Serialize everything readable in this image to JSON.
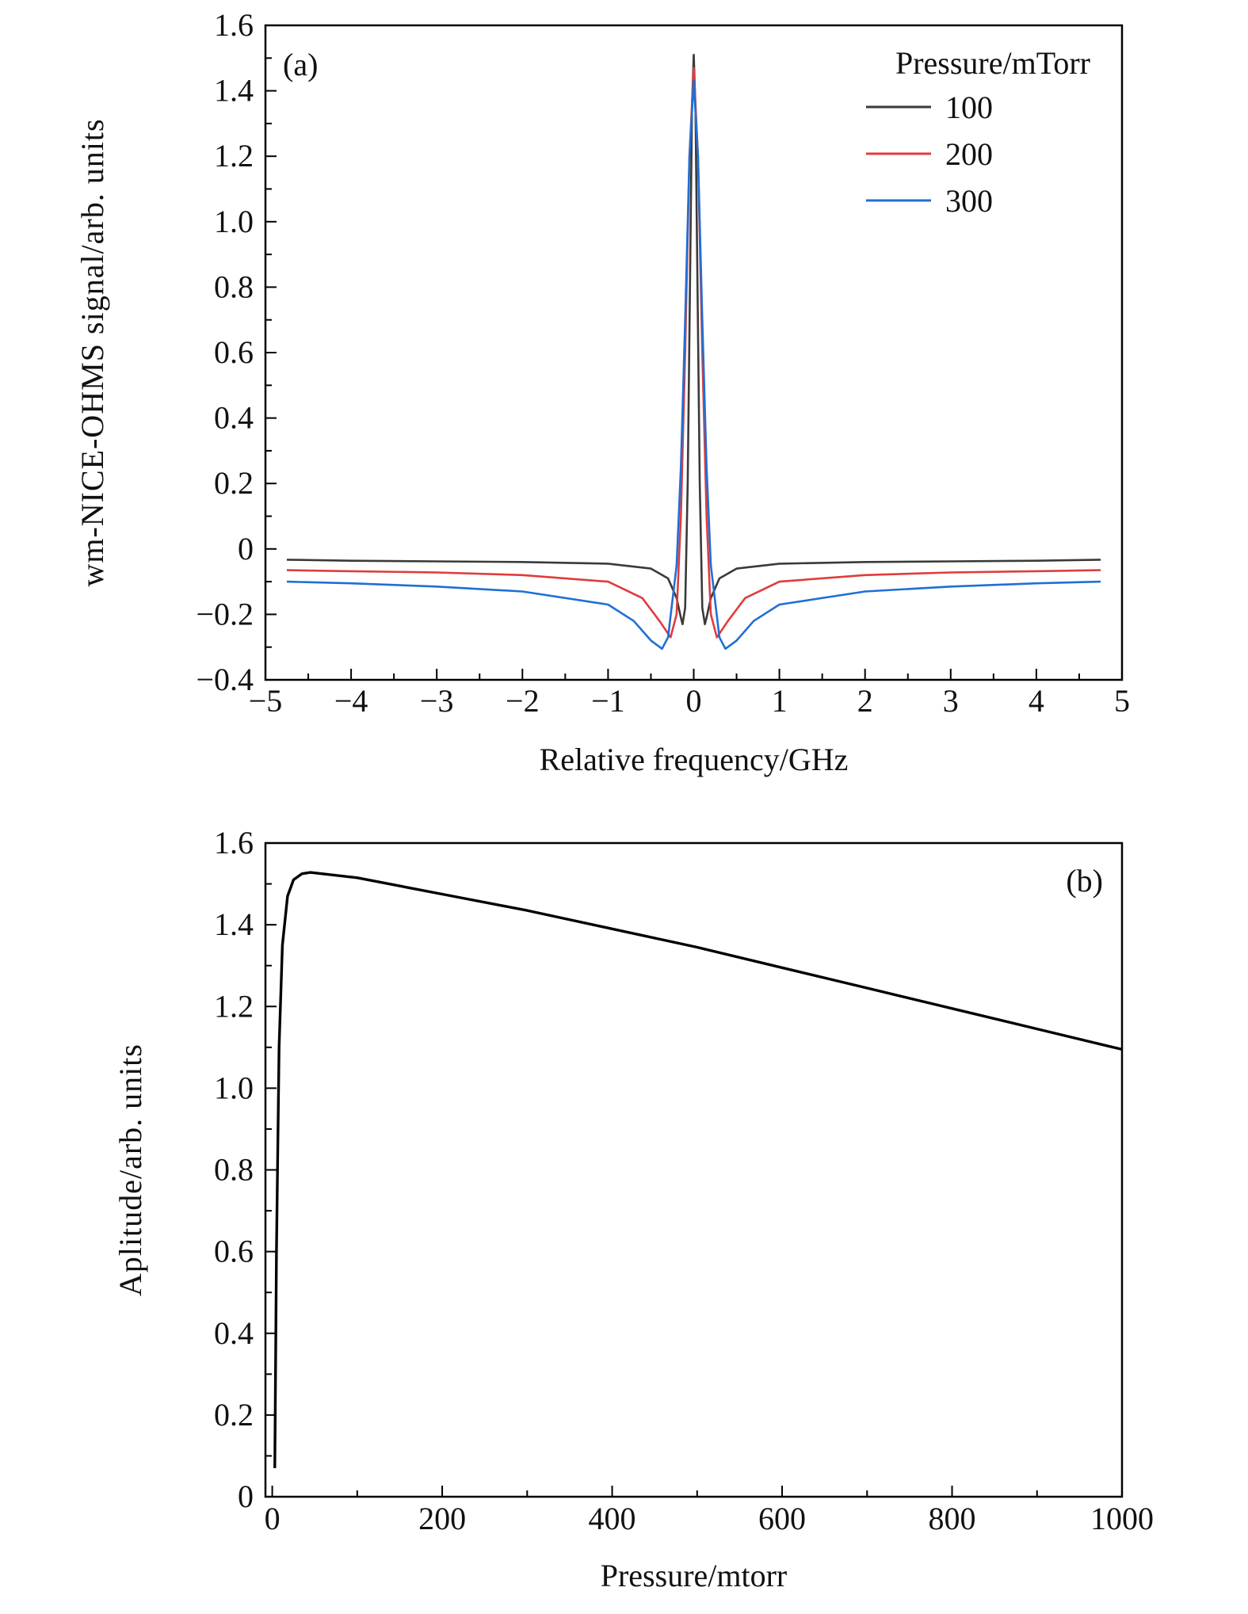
{
  "chart_data": [
    {
      "type": "line",
      "panel_label": "(a)",
      "xlabel": "Relative frequency/GHz",
      "ylabel": "wm-NICE-OHMS signal/arb. units",
      "xlim": [
        -5,
        5
      ],
      "ylim": [
        -0.4,
        1.6
      ],
      "xticks": [
        -5,
        -4,
        -3,
        -2,
        -1,
        0,
        1,
        2,
        3,
        4,
        5
      ],
      "xtick_labels": [
        "−5",
        "−4",
        "−3",
        "−2",
        "−1",
        "0",
        "1",
        "2",
        "3",
        "4",
        "5"
      ],
      "yticks": [
        -0.4,
        -0.2,
        0,
        0.2,
        0.4,
        0.6,
        0.8,
        1.0,
        1.2,
        1.4,
        1.6
      ],
      "ytick_labels": [
        "−0.4",
        "−0.2",
        "0",
        "0.2",
        "0.4",
        "0.6",
        "0.8",
        "1.0",
        "1.2",
        "1.4",
        "1.6"
      ],
      "legend": {
        "title": "Pressure/mTorr",
        "placement": "top-right"
      },
      "grid": false,
      "series": [
        {
          "name": "100",
          "color": "#3a3a3a",
          "x": [
            -4.75,
            -4,
            -3,
            -2,
            -1,
            -0.5,
            -0.3,
            -0.2,
            -0.15,
            -0.13,
            -0.1,
            -0.07,
            -0.04,
            -0.02,
            0,
            0.02,
            0.04,
            0.07,
            0.1,
            0.13,
            0.15,
            0.2,
            0.3,
            0.5,
            1,
            2,
            3,
            4,
            4.75
          ],
          "y": [
            -0.033,
            -0.036,
            -0.038,
            -0.04,
            -0.045,
            -0.06,
            -0.09,
            -0.15,
            -0.21,
            -0.23,
            -0.18,
            0.2,
            0.9,
            1.35,
            1.51,
            1.35,
            0.9,
            0.2,
            -0.18,
            -0.23,
            -0.21,
            -0.15,
            -0.09,
            -0.06,
            -0.045,
            -0.04,
            -0.038,
            -0.036,
            -0.033
          ]
        },
        {
          "name": "200",
          "color": "#e03c3c",
          "x": [
            -4.75,
            -4,
            -3,
            -2,
            -1,
            -0.6,
            -0.4,
            -0.27,
            -0.2,
            -0.15,
            -0.1,
            -0.05,
            0,
            0.05,
            0.1,
            0.15,
            0.2,
            0.27,
            0.4,
            0.6,
            1,
            2,
            3,
            4,
            4.75
          ],
          "y": [
            -0.065,
            -0.068,
            -0.072,
            -0.08,
            -0.1,
            -0.15,
            -0.22,
            -0.27,
            -0.2,
            0.1,
            0.6,
            1.2,
            1.47,
            1.2,
            0.6,
            0.1,
            -0.2,
            -0.27,
            -0.22,
            -0.15,
            -0.1,
            -0.08,
            -0.072,
            -0.068,
            -0.065
          ]
        },
        {
          "name": "300",
          "color": "#1f6fd6",
          "x": [
            -4.75,
            -4,
            -3,
            -2,
            -1,
            -0.7,
            -0.5,
            -0.37,
            -0.3,
            -0.2,
            -0.15,
            -0.1,
            -0.05,
            0,
            0.05,
            0.1,
            0.15,
            0.2,
            0.3,
            0.37,
            0.5,
            0.7,
            1,
            2,
            3,
            4,
            4.75
          ],
          "y": [
            -0.1,
            -0.105,
            -0.115,
            -0.13,
            -0.17,
            -0.22,
            -0.28,
            -0.305,
            -0.27,
            -0.05,
            0.25,
            0.7,
            1.2,
            1.43,
            1.2,
            0.7,
            0.25,
            -0.05,
            -0.27,
            -0.305,
            -0.28,
            -0.22,
            -0.17,
            -0.13,
            -0.115,
            -0.105,
            -0.1
          ]
        }
      ]
    },
    {
      "type": "line",
      "panel_label": "(b)",
      "xlabel": "Pressure/mtorr",
      "ylabel": "Aplitude/arb. units",
      "xlim": [
        -8,
        1000
      ],
      "ylim": [
        0,
        1.6
      ],
      "xticks": [
        0,
        200,
        400,
        600,
        800,
        1000
      ],
      "xtick_labels": [
        "0",
        "200",
        "400",
        "600",
        "800",
        "1000"
      ],
      "yticks": [
        0,
        0.2,
        0.4,
        0.6,
        0.8,
        1.0,
        1.2,
        1.4,
        1.6
      ],
      "ytick_labels": [
        "0",
        "0.2",
        "0.4",
        "0.6",
        "0.8",
        "1.0",
        "1.2",
        "1.4",
        "1.6"
      ],
      "grid": false,
      "series": [
        {
          "name": "amplitude",
          "color": "#000000",
          "x": [
            3,
            5,
            8,
            12,
            18,
            25,
            35,
            45,
            100,
            200,
            300,
            400,
            500,
            600,
            700,
            800,
            900,
            1000
          ],
          "y": [
            0.07,
            0.6,
            1.1,
            1.35,
            1.47,
            1.51,
            1.525,
            1.528,
            1.515,
            1.475,
            1.435,
            1.39,
            1.345,
            1.295,
            1.245,
            1.195,
            1.145,
            1.095
          ]
        }
      ]
    }
  ]
}
